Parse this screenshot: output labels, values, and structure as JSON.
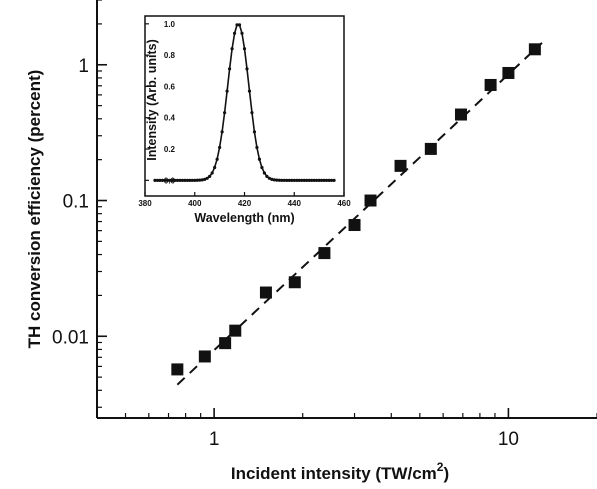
{
  "chart_data": [
    {
      "type": "scatter",
      "xlabel_main": "Incident intensity (TW/cm",
      "xlabel_sup": "2",
      "xlabel_tail": ")",
      "ylabel": "TH conversion efficiency (percent)",
      "xscale": "log",
      "yscale": "log",
      "xlim": [
        0.4,
        20
      ],
      "ylim": [
        0.0025,
        3
      ],
      "x_ticks": [
        1,
        10
      ],
      "x_tick_labels": [
        "1",
        "10"
      ],
      "y_ticks": [
        0.01,
        0.1,
        1
      ],
      "y_tick_labels": [
        "0.01",
        "0.1",
        "1"
      ],
      "grid": false,
      "series": [
        {
          "marker": "square",
          "x": [
            0.75,
            0.93,
            1.09,
            1.18,
            1.5,
            1.88,
            2.37,
            3.0,
            3.4,
            4.3,
            5.45,
            6.9,
            8.7,
            10.0,
            12.3
          ],
          "y": [
            0.0057,
            0.0071,
            0.0089,
            0.011,
            0.021,
            0.025,
            0.041,
            0.066,
            0.1,
            0.18,
            0.24,
            0.43,
            0.71,
            0.87,
            1.3
          ]
        }
      ],
      "fit_line": {
        "style": "dashed",
        "x": [
          0.75,
          13.0
        ],
        "y": [
          0.0044,
          1.45
        ]
      }
    },
    {
      "type": "line",
      "inset": true,
      "xlabel": "Wavelength (nm)",
      "ylabel": "Intensity (Arb. units)",
      "xlim": [
        380,
        460
      ],
      "ylim": [
        -0.1,
        1.05
      ],
      "x_ticks": [
        380,
        400,
        420,
        440,
        460
      ],
      "x_tick_labels": [
        "380",
        "400",
        "420",
        "440",
        "460"
      ],
      "y_ticks": [
        0.0,
        0.2,
        0.4,
        0.6,
        0.8,
        1.0
      ],
      "y_tick_labels": [
        "0.0",
        "0.2",
        "0.4",
        "0.6",
        "0.8",
        "1.0"
      ],
      "grid": false,
      "peak_center": 417.5,
      "fwhm": 10,
      "x_range_shown": [
        384,
        456
      ],
      "points": 73
    }
  ]
}
